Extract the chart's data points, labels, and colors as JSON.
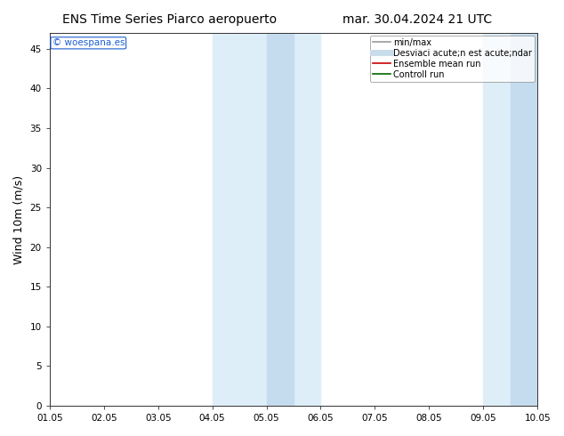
{
  "title_left": "ENS Time Series Piarco aeropuerto",
  "title_right": "mar. 30.04.2024 21 UTC",
  "ylabel": "Wind 10m (m/s)",
  "xlabel_ticks": [
    "01.05",
    "02.05",
    "03.05",
    "04.05",
    "05.05",
    "06.05",
    "07.05",
    "08.05",
    "09.05",
    "10.05"
  ],
  "xlim": [
    0,
    9
  ],
  "ylim": [
    0,
    47
  ],
  "yticks": [
    0,
    5,
    10,
    15,
    20,
    25,
    30,
    35,
    40,
    45
  ],
  "shaded_regions": [
    {
      "xmin": 3.0,
      "xmax": 4.0,
      "color": "#ddeef8"
    },
    {
      "xmin": 4.0,
      "xmax": 5.0,
      "color": "#ddeef8"
    },
    {
      "xmin": 8.0,
      "xmax": 8.5,
      "color": "#ddeef8"
    },
    {
      "xmin": 8.5,
      "xmax": 9.0,
      "color": "#ddeef8"
    }
  ],
  "inner_shaded_regions": [
    {
      "xmin": 4.0,
      "xmax": 4.5,
      "color": "#c5dcee"
    },
    {
      "xmin": 8.5,
      "xmax": 9.0,
      "color": "#c5dcee"
    }
  ],
  "watermark_text": "© woespana.es",
  "watermark_color": "#1a5fd4",
  "legend_entries": [
    {
      "label": "min/max",
      "color": "#999999",
      "lw": 1.2,
      "linestyle": "-"
    },
    {
      "label": "Desviaci acute;n est acute;ndar",
      "color": "#c8dcea",
      "lw": 5,
      "linestyle": "-"
    },
    {
      "label": "Ensemble mean run",
      "color": "#cc0000",
      "lw": 1.2,
      "linestyle": "-"
    },
    {
      "label": "Controll run",
      "color": "#006600",
      "lw": 1.2,
      "linestyle": "-"
    }
  ],
  "background_color": "#ffffff",
  "plot_bg_color": "#ffffff",
  "tick_fontsize": 7.5,
  "label_fontsize": 9,
  "title_fontsize": 10
}
